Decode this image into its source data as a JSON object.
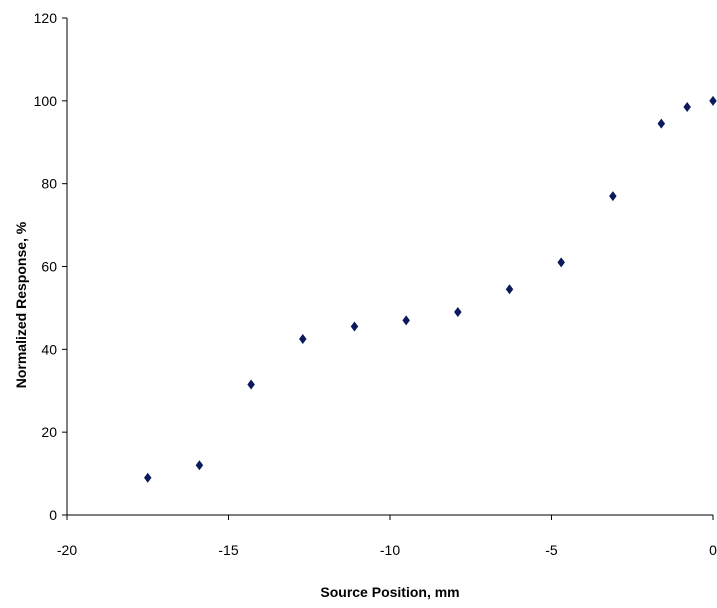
{
  "chart_data": {
    "type": "scatter",
    "title": "",
    "xlabel": "Source Position, mm",
    "ylabel": "Normalized Response, %",
    "xlim": [
      -20,
      0
    ],
    "ylim": [
      0,
      120
    ],
    "x_ticks": [
      -20,
      -15,
      -10,
      -5,
      0
    ],
    "y_ticks": [
      0,
      20,
      40,
      60,
      80,
      100,
      120
    ],
    "grid": false,
    "legend": "none",
    "marker": "diamond",
    "marker_color": "#0a1a5c",
    "series": [
      {
        "points": [
          {
            "x": -17.5,
            "y": 9
          },
          {
            "x": -15.9,
            "y": 12
          },
          {
            "x": -14.3,
            "y": 31.5
          },
          {
            "x": -12.7,
            "y": 42.5
          },
          {
            "x": -11.1,
            "y": 45.5
          },
          {
            "x": -9.5,
            "y": 47
          },
          {
            "x": -7.9,
            "y": 49
          },
          {
            "x": -6.3,
            "y": 54.5
          },
          {
            "x": -4.7,
            "y": 61
          },
          {
            "x": -3.1,
            "y": 77
          },
          {
            "x": -1.6,
            "y": 94.5
          },
          {
            "x": -0.8,
            "y": 98.5
          },
          {
            "x": 0,
            "y": 100
          }
        ]
      }
    ]
  }
}
